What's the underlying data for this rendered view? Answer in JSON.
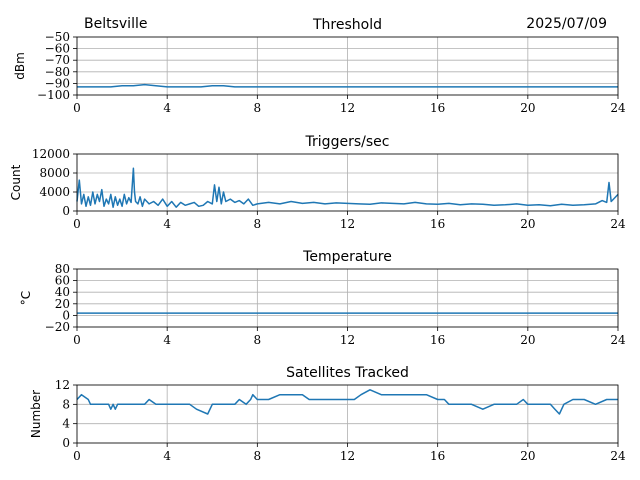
{
  "header": {
    "left": "Beltsville",
    "right": "2025/07/09"
  },
  "colors": {
    "series": "#1f77b4"
  },
  "chart_data": [
    {
      "type": "line",
      "title": "Threshold",
      "ylabel": "dBm",
      "xlim": [
        0,
        24
      ],
      "ylim": [
        -100,
        -50
      ],
      "xticks": [
        0,
        4,
        8,
        12,
        16,
        20,
        24
      ],
      "yticks": [
        -100,
        -90,
        -80,
        -70,
        -60,
        -50
      ],
      "ytick_labels": [
        "−100",
        "−90",
        "−80",
        "−70",
        "−60",
        "−50"
      ],
      "x": [
        0,
        0.5,
        1,
        1.5,
        2,
        2.5,
        3,
        3.5,
        4,
        4.5,
        5,
        5.5,
        6,
        6.5,
        7,
        7.5,
        8,
        9,
        10,
        11,
        12,
        13,
        14,
        15,
        16,
        17,
        18,
        19,
        20,
        21,
        22,
        23,
        24
      ],
      "y": [
        -93,
        -93,
        -93,
        -93,
        -92,
        -92,
        -91,
        -92,
        -93,
        -93,
        -93,
        -93,
        -92,
        -92,
        -93,
        -93,
        -93,
        -93,
        -93,
        -93,
        -93,
        -93,
        -93,
        -93,
        -93,
        -93,
        -93,
        -93,
        -93,
        -93,
        -93,
        -93,
        -93
      ]
    },
    {
      "type": "line",
      "title": "Triggers/sec",
      "ylabel": "Count",
      "xlim": [
        0,
        24
      ],
      "ylim": [
        0,
        12000
      ],
      "xticks": [
        0,
        4,
        8,
        12,
        16,
        20,
        24
      ],
      "yticks": [
        0,
        4000,
        8000,
        12000
      ],
      "ytick_labels": [
        "0",
        "4000",
        "8000",
        "12000"
      ],
      "x": [
        0,
        0.1,
        0.2,
        0.3,
        0.4,
        0.5,
        0.6,
        0.7,
        0.8,
        0.9,
        1.0,
        1.1,
        1.2,
        1.3,
        1.4,
        1.5,
        1.6,
        1.7,
        1.8,
        1.9,
        2.0,
        2.1,
        2.2,
        2.3,
        2.4,
        2.5,
        2.55,
        2.6,
        2.7,
        2.8,
        2.9,
        3.0,
        3.2,
        3.4,
        3.6,
        3.8,
        4.0,
        4.2,
        4.4,
        4.6,
        4.8,
        5.0,
        5.2,
        5.4,
        5.6,
        5.8,
        6.0,
        6.1,
        6.2,
        6.3,
        6.4,
        6.5,
        6.6,
        6.8,
        7.0,
        7.2,
        7.4,
        7.6,
        7.8,
        8.0,
        8.5,
        9.0,
        9.5,
        10.0,
        10.5,
        11.0,
        11.5,
        12.0,
        12.5,
        13.0,
        13.5,
        14.0,
        14.5,
        15.0,
        15.5,
        16.0,
        16.5,
        17.0,
        17.5,
        18.0,
        18.5,
        19.0,
        19.5,
        20.0,
        20.5,
        21.0,
        21.5,
        22.0,
        22.5,
        23.0,
        23.3,
        23.5,
        23.6,
        23.7,
        23.8,
        24.0
      ],
      "y": [
        2000,
        6500,
        1500,
        3500,
        1000,
        3000,
        1200,
        4000,
        1500,
        3500,
        2000,
        4500,
        1000,
        2500,
        1500,
        3500,
        800,
        3000,
        1200,
        2500,
        1000,
        3500,
        1500,
        2800,
        1800,
        9000,
        4000,
        2000,
        1500,
        3000,
        1000,
        2500,
        1500,
        2000,
        1200,
        2500,
        1000,
        2000,
        800,
        1800,
        1200,
        1500,
        1800,
        1000,
        1200,
        2000,
        1500,
        5500,
        2000,
        5000,
        1500,
        4000,
        2000,
        2500,
        1800,
        2200,
        1500,
        2500,
        1200,
        1500,
        1800,
        1500,
        2000,
        1600,
        1800,
        1500,
        1700,
        1600,
        1500,
        1400,
        1700,
        1600,
        1500,
        1800,
        1500,
        1400,
        1600,
        1300,
        1500,
        1400,
        1200,
        1300,
        1500,
        1200,
        1300,
        1100,
        1400,
        1200,
        1300,
        1500,
        2200,
        1800,
        6000,
        2000,
        2500,
        3500
      ]
    },
    {
      "type": "line",
      "title": "Temperature",
      "ylabel": "°C",
      "xlim": [
        0,
        24
      ],
      "ylim": [
        -20,
        80
      ],
      "xticks": [
        0,
        4,
        8,
        12,
        16,
        20,
        24
      ],
      "yticks": [
        -20,
        0,
        20,
        40,
        60,
        80
      ],
      "ytick_labels": [
        "−20",
        "0",
        "20",
        "40",
        "60",
        "80"
      ],
      "x": [
        0,
        24
      ],
      "y": [
        4,
        4
      ]
    },
    {
      "type": "line",
      "title": "Satellites Tracked",
      "ylabel": "Number",
      "xlim": [
        0,
        24
      ],
      "ylim": [
        0,
        12
      ],
      "xticks": [
        0,
        4,
        8,
        12,
        16,
        20,
        24
      ],
      "yticks": [
        0,
        4,
        8,
        12
      ],
      "ytick_labels": [
        "0",
        "4",
        "8",
        "12"
      ],
      "x": [
        0,
        0.2,
        0.5,
        0.6,
        0.7,
        1.0,
        1.4,
        1.5,
        1.6,
        1.7,
        1.8,
        2.0,
        2.2,
        2.5,
        3.0,
        3.2,
        3.5,
        4.0,
        4.5,
        5.0,
        5.3,
        5.8,
        6.0,
        6.5,
        7.0,
        7.2,
        7.5,
        7.7,
        7.8,
        8.0,
        8.5,
        9.0,
        9.5,
        10.0,
        10.3,
        10.6,
        11.0,
        11.5,
        12.0,
        12.3,
        12.6,
        13.0,
        13.5,
        14.0,
        14.5,
        15.0,
        15.5,
        16.0,
        16.3,
        16.5,
        17.0,
        17.5,
        18.0,
        18.5,
        19.0,
        19.5,
        19.8,
        20.0,
        21.0,
        21.2,
        21.4,
        21.6,
        22.0,
        22.5,
        23.0,
        23.5,
        24.0
      ],
      "y": [
        9,
        10,
        9,
        8,
        8,
        8,
        8,
        7,
        8,
        7,
        8,
        8,
        8,
        8,
        8,
        9,
        8,
        8,
        8,
        8,
        7,
        6,
        8,
        8,
        8,
        9,
        8,
        9,
        10,
        9,
        9,
        10,
        10,
        10,
        9,
        9,
        9,
        9,
        9,
        9,
        10,
        11,
        10,
        10,
        10,
        10,
        10,
        9,
        9,
        8,
        8,
        8,
        7,
        8,
        8,
        8,
        9,
        8,
        8,
        7,
        6,
        8,
        9,
        9,
        8,
        9,
        9
      ]
    }
  ]
}
